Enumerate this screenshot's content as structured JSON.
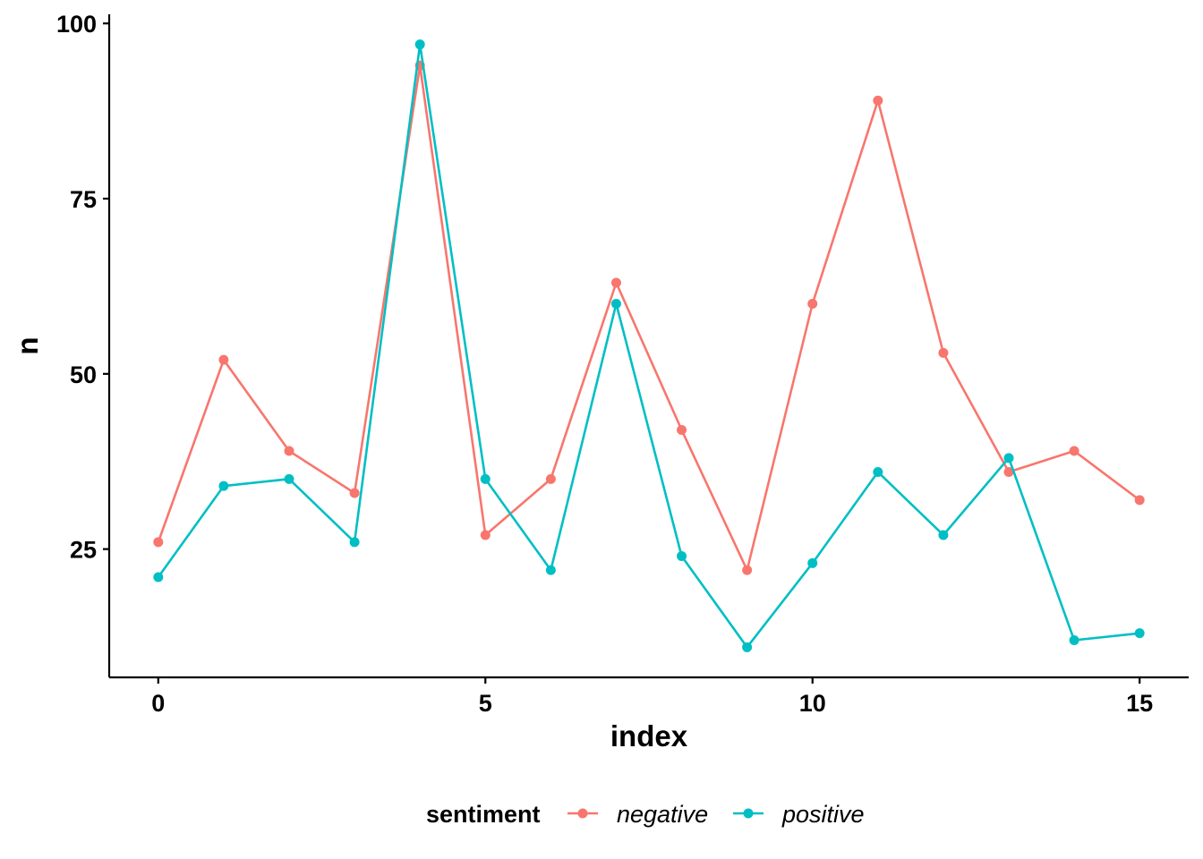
{
  "chart_data": {
    "type": "line",
    "x": [
      0,
      1,
      2,
      3,
      4,
      5,
      6,
      7,
      8,
      9,
      10,
      11,
      12,
      13,
      14,
      15
    ],
    "series": [
      {
        "name": "negative",
        "color": "#F8766D",
        "values": [
          26,
          52,
          39,
          33,
          94,
          27,
          35,
          63,
          42,
          22,
          60,
          89,
          53,
          36,
          39,
          32
        ]
      },
      {
        "name": "positive",
        "color": "#00BFC4",
        "values": [
          21,
          34,
          35,
          26,
          97,
          35,
          22,
          60,
          24,
          11,
          23,
          36,
          27,
          38,
          12,
          13
        ]
      }
    ],
    "xlabel": "index",
    "ylabel": "n",
    "xlim": [
      -0.75,
      15.75
    ],
    "ylim": [
      6.7,
      101.3
    ],
    "xticks": [
      "0",
      "5",
      "10",
      "15"
    ],
    "yticks": [
      "25",
      "50",
      "75",
      "100"
    ],
    "xtick_values": [
      0,
      5,
      10,
      15
    ],
    "ytick_values": [
      25,
      50,
      75,
      100
    ],
    "grid": false,
    "legend_title": "sentiment",
    "legend_position": "bottom"
  }
}
